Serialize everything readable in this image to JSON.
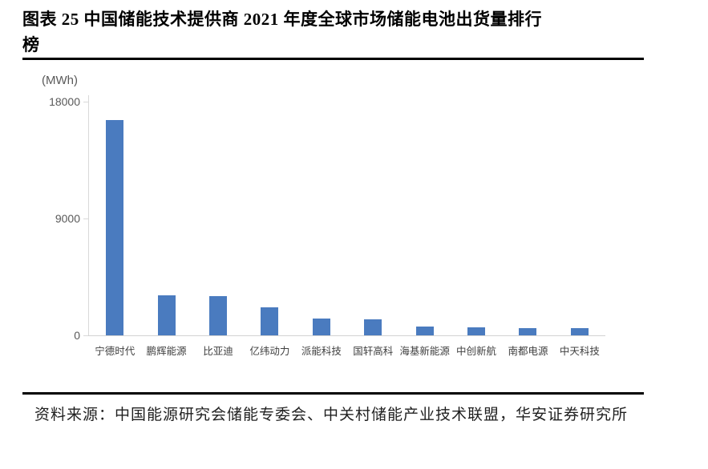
{
  "figure": {
    "title_line1": "图表 25 中国储能技术提供商 2021 年度全球市场储能电池出货量排行",
    "title_line2": "榜"
  },
  "chart_data": {
    "type": "bar",
    "title": "中国储能技术提供商2021年度全球市场储能电池出货量排行榜",
    "unit_label": "(MWh)",
    "categories": [
      "宁德时代",
      "鹏辉能源",
      "比亚迪",
      "亿纬动力",
      "派能科技",
      "国轩高科",
      "海基新能源",
      "中创新航",
      "南都电源",
      "中天科技"
    ],
    "values": [
      16600,
      3100,
      3050,
      2150,
      1300,
      1250,
      680,
      590,
      530,
      580
    ],
    "xlabel": "",
    "ylabel": "(MWh)",
    "ylim": [
      0,
      18000
    ],
    "yticks": [
      18000,
      9000,
      0
    ],
    "ytick_labels": [
      "18000",
      "9000",
      "0"
    ],
    "grid": false,
    "legend": "none",
    "bar_color": "#4a7bbf",
    "axis_color": "#d9d9d9",
    "tick_text_color": "#595959"
  },
  "footer": {
    "source_text": "资料来源：中国能源研究会储能专委会、中关村储能产业技术联盟，华安证券研究所"
  }
}
